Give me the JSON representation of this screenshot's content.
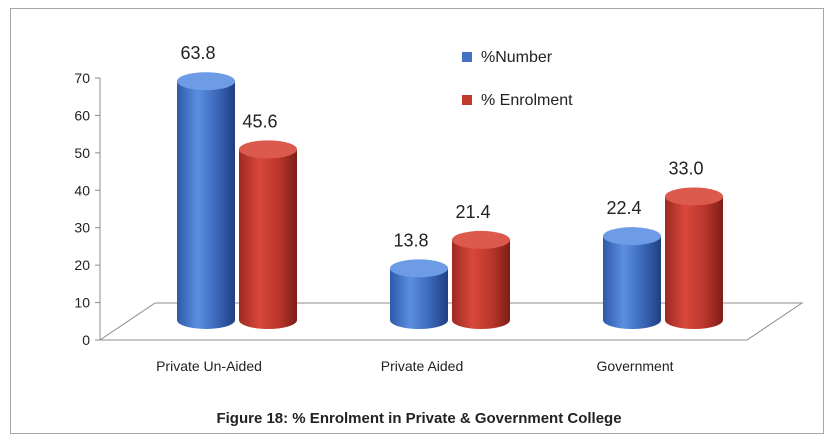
{
  "caption": "Figure 18: % Enrolment in Private & Government College",
  "colors": {
    "blue": "#4472c4",
    "red": "#c0392b"
  },
  "chart_data": {
    "type": "bar",
    "categories": [
      "Private Un-Aided",
      "Private Aided",
      "Government"
    ],
    "series": [
      {
        "name": "%Number",
        "values": [
          63.8,
          13.8,
          22.4
        ]
      },
      {
        "name": "% Enrolment",
        "values": [
          45.6,
          21.4,
          33.0
        ]
      }
    ],
    "data_labels": [
      [
        "63.8",
        "13.8",
        "22.4"
      ],
      [
        "45.6",
        "21.4",
        "33.0"
      ]
    ],
    "ylim": [
      0,
      70
    ],
    "yticks": [
      0,
      10,
      20,
      30,
      40,
      50,
      60,
      70
    ],
    "legend": "top-center",
    "grid": false,
    "style": "3d-cylinder",
    "title": ""
  }
}
